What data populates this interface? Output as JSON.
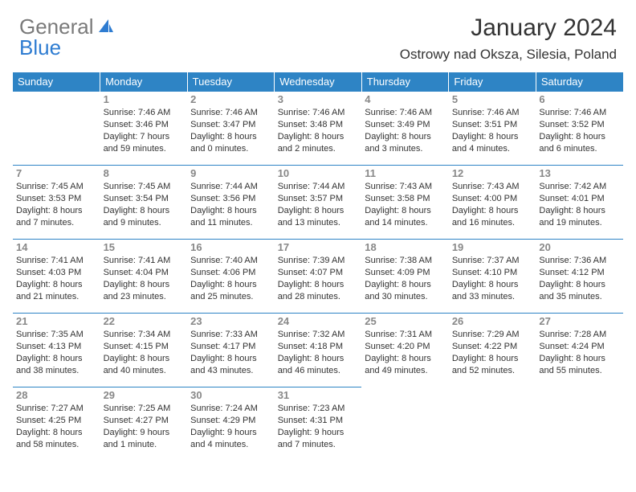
{
  "logo": {
    "text1": "General",
    "text2": "Blue"
  },
  "title": "January 2024",
  "location": "Ostrowy nad Oksza, Silesia, Poland",
  "colors": {
    "header_bg": "#2e84c5",
    "header_text": "#ffffff",
    "daynum": "#888888",
    "body_text": "#333333",
    "rule": "#2e84c5",
    "logo_gray": "#7a7a7a",
    "logo_blue": "#2e7cd1"
  },
  "day_headers": [
    "Sunday",
    "Monday",
    "Tuesday",
    "Wednesday",
    "Thursday",
    "Friday",
    "Saturday"
  ],
  "weeks": [
    [
      null,
      {
        "n": "1",
        "sr": "Sunrise: 7:46 AM",
        "ss": "Sunset: 3:46 PM",
        "dl": "Daylight: 7 hours and 59 minutes."
      },
      {
        "n": "2",
        "sr": "Sunrise: 7:46 AM",
        "ss": "Sunset: 3:47 PM",
        "dl": "Daylight: 8 hours and 0 minutes."
      },
      {
        "n": "3",
        "sr": "Sunrise: 7:46 AM",
        "ss": "Sunset: 3:48 PM",
        "dl": "Daylight: 8 hours and 2 minutes."
      },
      {
        "n": "4",
        "sr": "Sunrise: 7:46 AM",
        "ss": "Sunset: 3:49 PM",
        "dl": "Daylight: 8 hours and 3 minutes."
      },
      {
        "n": "5",
        "sr": "Sunrise: 7:46 AM",
        "ss": "Sunset: 3:51 PM",
        "dl": "Daylight: 8 hours and 4 minutes."
      },
      {
        "n": "6",
        "sr": "Sunrise: 7:46 AM",
        "ss": "Sunset: 3:52 PM",
        "dl": "Daylight: 8 hours and 6 minutes."
      }
    ],
    [
      {
        "n": "7",
        "sr": "Sunrise: 7:45 AM",
        "ss": "Sunset: 3:53 PM",
        "dl": "Daylight: 8 hours and 7 minutes."
      },
      {
        "n": "8",
        "sr": "Sunrise: 7:45 AM",
        "ss": "Sunset: 3:54 PM",
        "dl": "Daylight: 8 hours and 9 minutes."
      },
      {
        "n": "9",
        "sr": "Sunrise: 7:44 AM",
        "ss": "Sunset: 3:56 PM",
        "dl": "Daylight: 8 hours and 11 minutes."
      },
      {
        "n": "10",
        "sr": "Sunrise: 7:44 AM",
        "ss": "Sunset: 3:57 PM",
        "dl": "Daylight: 8 hours and 13 minutes."
      },
      {
        "n": "11",
        "sr": "Sunrise: 7:43 AM",
        "ss": "Sunset: 3:58 PM",
        "dl": "Daylight: 8 hours and 14 minutes."
      },
      {
        "n": "12",
        "sr": "Sunrise: 7:43 AM",
        "ss": "Sunset: 4:00 PM",
        "dl": "Daylight: 8 hours and 16 minutes."
      },
      {
        "n": "13",
        "sr": "Sunrise: 7:42 AM",
        "ss": "Sunset: 4:01 PM",
        "dl": "Daylight: 8 hours and 19 minutes."
      }
    ],
    [
      {
        "n": "14",
        "sr": "Sunrise: 7:41 AM",
        "ss": "Sunset: 4:03 PM",
        "dl": "Daylight: 8 hours and 21 minutes."
      },
      {
        "n": "15",
        "sr": "Sunrise: 7:41 AM",
        "ss": "Sunset: 4:04 PM",
        "dl": "Daylight: 8 hours and 23 minutes."
      },
      {
        "n": "16",
        "sr": "Sunrise: 7:40 AM",
        "ss": "Sunset: 4:06 PM",
        "dl": "Daylight: 8 hours and 25 minutes."
      },
      {
        "n": "17",
        "sr": "Sunrise: 7:39 AM",
        "ss": "Sunset: 4:07 PM",
        "dl": "Daylight: 8 hours and 28 minutes."
      },
      {
        "n": "18",
        "sr": "Sunrise: 7:38 AM",
        "ss": "Sunset: 4:09 PM",
        "dl": "Daylight: 8 hours and 30 minutes."
      },
      {
        "n": "19",
        "sr": "Sunrise: 7:37 AM",
        "ss": "Sunset: 4:10 PM",
        "dl": "Daylight: 8 hours and 33 minutes."
      },
      {
        "n": "20",
        "sr": "Sunrise: 7:36 AM",
        "ss": "Sunset: 4:12 PM",
        "dl": "Daylight: 8 hours and 35 minutes."
      }
    ],
    [
      {
        "n": "21",
        "sr": "Sunrise: 7:35 AM",
        "ss": "Sunset: 4:13 PM",
        "dl": "Daylight: 8 hours and 38 minutes."
      },
      {
        "n": "22",
        "sr": "Sunrise: 7:34 AM",
        "ss": "Sunset: 4:15 PM",
        "dl": "Daylight: 8 hours and 40 minutes."
      },
      {
        "n": "23",
        "sr": "Sunrise: 7:33 AM",
        "ss": "Sunset: 4:17 PM",
        "dl": "Daylight: 8 hours and 43 minutes."
      },
      {
        "n": "24",
        "sr": "Sunrise: 7:32 AM",
        "ss": "Sunset: 4:18 PM",
        "dl": "Daylight: 8 hours and 46 minutes."
      },
      {
        "n": "25",
        "sr": "Sunrise: 7:31 AM",
        "ss": "Sunset: 4:20 PM",
        "dl": "Daylight: 8 hours and 49 minutes."
      },
      {
        "n": "26",
        "sr": "Sunrise: 7:29 AM",
        "ss": "Sunset: 4:22 PM",
        "dl": "Daylight: 8 hours and 52 minutes."
      },
      {
        "n": "27",
        "sr": "Sunrise: 7:28 AM",
        "ss": "Sunset: 4:24 PM",
        "dl": "Daylight: 8 hours and 55 minutes."
      }
    ],
    [
      {
        "n": "28",
        "sr": "Sunrise: 7:27 AM",
        "ss": "Sunset: 4:25 PM",
        "dl": "Daylight: 8 hours and 58 minutes."
      },
      {
        "n": "29",
        "sr": "Sunrise: 7:25 AM",
        "ss": "Sunset: 4:27 PM",
        "dl": "Daylight: 9 hours and 1 minute."
      },
      {
        "n": "30",
        "sr": "Sunrise: 7:24 AM",
        "ss": "Sunset: 4:29 PM",
        "dl": "Daylight: 9 hours and 4 minutes."
      },
      {
        "n": "31",
        "sr": "Sunrise: 7:23 AM",
        "ss": "Sunset: 4:31 PM",
        "dl": "Daylight: 9 hours and 7 minutes."
      },
      null,
      null,
      null
    ]
  ]
}
